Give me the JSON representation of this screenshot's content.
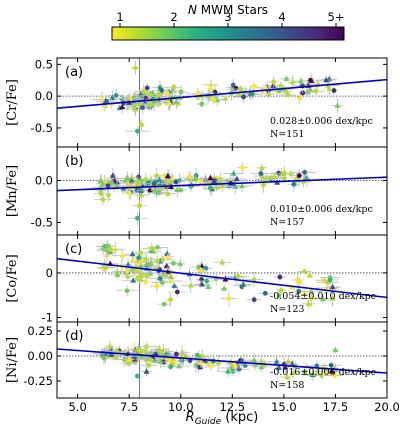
{
  "colorbar": {
    "title_italic": "N",
    "title_rest": " MWM Stars",
    "ticks": [
      "1",
      "2",
      "3",
      "4",
      "5+"
    ],
    "colors": [
      "#fde725",
      "#b5de2b",
      "#6ece58",
      "#35b779",
      "#1f9e89",
      "#26828e",
      "#31688e",
      "#3e4989",
      "#482878",
      "#440154"
    ]
  },
  "x_axis": {
    "label_main": "R",
    "label_sub": "Guide",
    "label_unit": " (kpc)",
    "ticks": [
      "5.0",
      "7.5",
      "10.0",
      "12.5",
      "15.0",
      "17.5",
      "20.0"
    ],
    "range": [
      4.0,
      20.0
    ],
    "vline": 8.0
  },
  "line_color": "#0000cc",
  "chart_data": [
    {
      "type": "scatter",
      "panel": "(a)",
      "ylabel": "[Cr/Fe]",
      "ylim": [
        -0.8,
        0.6
      ],
      "yticks": [
        "0.5",
        "0.0",
        "-0.5"
      ],
      "slope_text": "0.028±0.006 dex/kpc",
      "n_text": "N=151",
      "fit_line": {
        "x": [
          4.0,
          20.0
        ],
        "y": [
          -0.19,
          0.26
        ]
      },
      "stars": {
        "n": 151,
        "x_range": [
          6.1,
          17.5
        ],
        "y_center_at_8": -0.06,
        "slope": 0.028,
        "scatter": 0.07
      },
      "outliers": [
        [
          7.8,
          0.45
        ],
        [
          7.9,
          -0.55
        ],
        [
          8.1,
          -0.45
        ],
        [
          17.6,
          -0.15
        ]
      ]
    },
    {
      "type": "scatter",
      "panel": "(b)",
      "ylabel": "[Mn/Fe]",
      "ylim": [
        -0.65,
        0.4
      ],
      "yticks": [
        "0.0",
        "-0.5"
      ],
      "slope_text": "0.010±0.006 dex/kpc",
      "n_text": "N=157",
      "fit_line": {
        "x": [
          4.0,
          20.0
        ],
        "y": [
          -0.12,
          0.04
        ]
      },
      "stars": {
        "n": 157,
        "x_range": [
          6.1,
          16.2
        ],
        "y_center_at_8": -0.05,
        "slope": 0.01,
        "scatter": 0.06
      },
      "outliers": [
        [
          7.9,
          -0.45
        ],
        [
          8.0,
          -0.3
        ]
      ]
    },
    {
      "type": "scatter",
      "panel": "(c)",
      "ylabel": "[Co/Fe]",
      "ylim": [
        -1.1,
        0.85
      ],
      "yticks": [
        "0",
        "-1"
      ],
      "slope_text": "-0.054±0.010 dex/kpc",
      "n_text": "N=123",
      "fit_line": {
        "x": [
          4.0,
          20.0
        ],
        "y": [
          0.32,
          -0.55
        ]
      },
      "stars": {
        "n": 123,
        "x_range": [
          6.2,
          17.7
        ],
        "y_center_at_8": 0.1,
        "slope": -0.054,
        "scatter": 0.22
      },
      "outliers": [
        [
          9.2,
          -0.7
        ],
        [
          9.5,
          -0.6
        ],
        [
          7.4,
          -0.4
        ],
        [
          8.6,
          0.55
        ]
      ]
    },
    {
      "type": "scatter",
      "panel": "(d)",
      "ylabel": "[Ni/Fe]",
      "ylim": [
        -0.42,
        0.34
      ],
      "yticks": [
        "0.25",
        "0.00",
        "-0.25"
      ],
      "slope_text": "-0.016±0.006 dex/kpc",
      "n_text": "N=158",
      "fit_line": {
        "x": [
          4.0,
          20.0
        ],
        "y": [
          0.07,
          -0.17
        ]
      },
      "stars": {
        "n": 158,
        "x_range": [
          6.2,
          17.5
        ],
        "y_center_at_8": 0.0,
        "slope": -0.016,
        "scatter": 0.04
      },
      "outliers": [
        [
          7.9,
          -0.2
        ],
        [
          17.5,
          0.06
        ]
      ]
    }
  ]
}
